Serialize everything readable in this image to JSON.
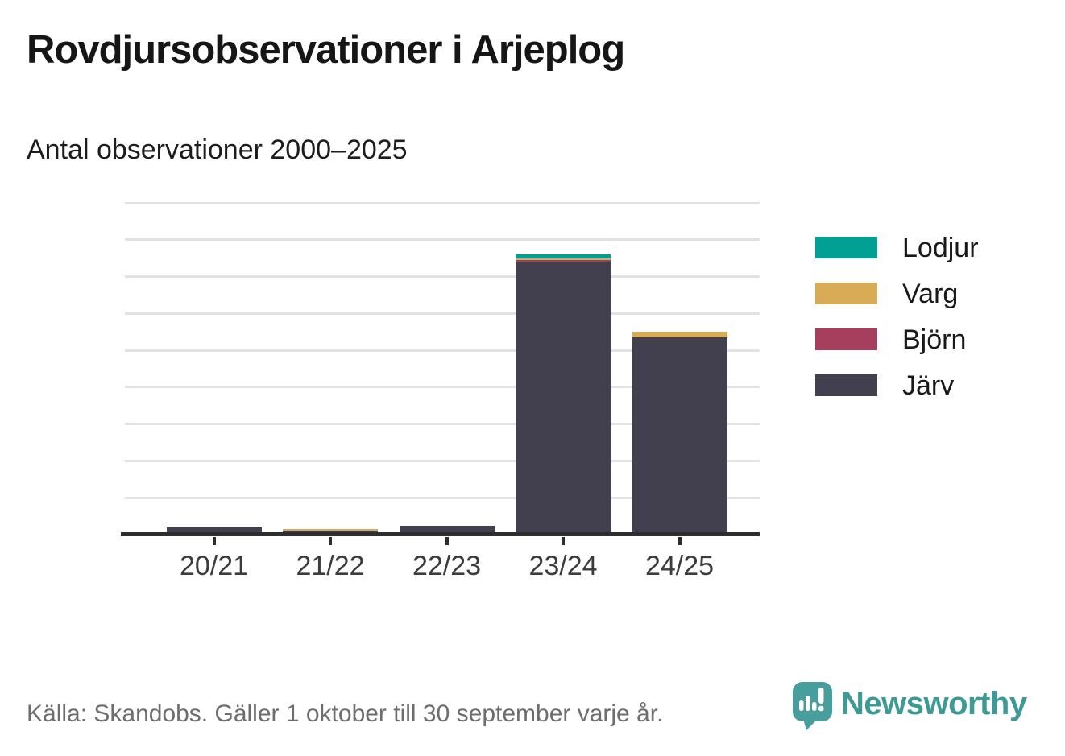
{
  "header": {
    "title": "Rovdjursobservationer i Arjeplog",
    "subtitle": "Antal observationer 2000–2025"
  },
  "footer": {
    "source": "Källa: Skandobs. Gäller 1 oktober till 30 september varje år.",
    "brand": "Newsworthy"
  },
  "colors": {
    "lodjur": "#00a094",
    "varg": "#d8ab57",
    "bjorn": "#a63f5e",
    "jarv": "#42404f",
    "brand_teal": "#3e9a95",
    "gridline": "#e2e2e2",
    "axis": "#2d2d2d",
    "source_text": "#6d6d6d"
  },
  "chart_data": {
    "type": "bar",
    "stacked": true,
    "title": "Rovdjursobservationer i Arjeplog",
    "subtitle": "Antal observationer 2000–2025",
    "categories": [
      "20/21",
      "21/22",
      "22/23",
      "23/24",
      "24/25"
    ],
    "series": [
      {
        "name": "Lodjur",
        "color": "#00a094",
        "values": [
          0,
          0,
          0,
          2,
          0
        ]
      },
      {
        "name": "Varg",
        "color": "#d8ab57",
        "values": [
          0,
          1,
          0,
          1,
          3
        ]
      },
      {
        "name": "Björn",
        "color": "#a63f5e",
        "values": [
          0,
          0,
          0,
          1,
          0
        ]
      },
      {
        "name": "Järv",
        "color": "#42404f",
        "values": [
          4,
          2,
          5,
          148,
          107
        ]
      }
    ],
    "totals": [
      4,
      3,
      5,
      152,
      110
    ],
    "xlabel": "",
    "ylabel": "",
    "ylim": [
      0,
      180
    ],
    "ytick_step": 20,
    "yticks": [
      0,
      20,
      40,
      60,
      80,
      100,
      120,
      140,
      160,
      180
    ],
    "grid": true,
    "legend_position": "right",
    "stack_order_bottom_to_top": [
      "Järv",
      "Björn",
      "Varg",
      "Lodjur"
    ]
  }
}
